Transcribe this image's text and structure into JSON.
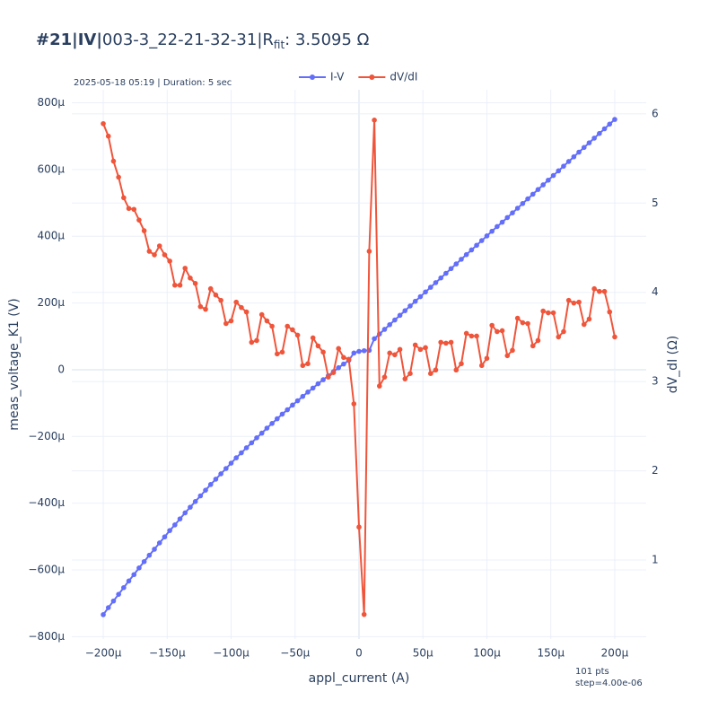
{
  "chart_data": {
    "type": "line",
    "title": {
      "bold": "#21|IV|",
      "text": "003-3_22-21-32-31|R",
      "subscript": "fit",
      "suffix": ": 3.5095 Ω"
    },
    "subtitle": "2025-05-18 05:19 | Duration: 5 sec",
    "annotations": [
      "101 pts",
      "step=4.00e-06"
    ],
    "x_label": "appl_current (A)",
    "y_label": "meas_voltage_K1 (V)",
    "y2_label": "dV_dI (Ω)",
    "legend": "top-center",
    "grid": true,
    "x": [
      -0.0002,
      -0.000196,
      -0.000192,
      -0.000188,
      -0.000184,
      -0.00018,
      -0.000176,
      -0.000172,
      -0.000168,
      -0.000164,
      -0.00016,
      -0.000156,
      -0.000152,
      -0.000148,
      -0.000144,
      -0.00014,
      -0.000136,
      -0.000132,
      -0.000128,
      -0.000124,
      -0.00012,
      -0.000116,
      -0.000112,
      -0.000108,
      -0.000104,
      -0.0001,
      -9.6e-05,
      -9.2e-05,
      -8.8e-05,
      -8.4e-05,
      -8e-05,
      -7.6e-05,
      -7.2e-05,
      -6.8e-05,
      -6.4e-05,
      -6e-05,
      -5.6e-05,
      -5.2e-05,
      -4.8e-05,
      -4.4e-05,
      -4e-05,
      -3.6e-05,
      -3.2e-05,
      -2.8e-05,
      -2.4e-05,
      -2e-05,
      -1.6e-05,
      -1.2e-05,
      -8e-06,
      -4e-06,
      0,
      4e-06,
      8e-06,
      1.2e-05,
      1.6e-05,
      2e-05,
      2.4e-05,
      2.8e-05,
      3.2e-05,
      3.6e-05,
      4e-05,
      4.4e-05,
      4.8e-05,
      5.2e-05,
      5.6e-05,
      6e-05,
      6.4e-05,
      6.8e-05,
      7.2e-05,
      7.6e-05,
      8e-05,
      8.4e-05,
      8.8e-05,
      9.2e-05,
      9.6e-05,
      0.0001,
      0.000104,
      0.000108,
      0.000112,
      0.000116,
      0.00012,
      0.000124,
      0.000128,
      0.000132,
      0.000136,
      0.00014,
      0.000144,
      0.000148,
      0.000152,
      0.000156,
      0.00016,
      0.000164,
      0.000168,
      0.000172,
      0.000176,
      0.00018,
      0.000184,
      0.000188,
      0.000192,
      0.000196,
      0.0002
    ],
    "series": [
      {
        "name": "I-V",
        "color": "#636efa",
        "axis": "y",
        "values": [
          -0.000734,
          -0.000713,
          -0.000693,
          -0.000673,
          -0.000653,
          -0.000633,
          -0.000614,
          -0.000594,
          -0.000575,
          -0.000556,
          -0.000538,
          -0.000519,
          -0.000501,
          -0.000482,
          -0.000465,
          -0.000447,
          -0.000429,
          -0.000412,
          -0.000395,
          -0.000378,
          -0.000361,
          -0.000344,
          -0.000328,
          -0.000312,
          -0.000296,
          -0.00028,
          -0.000264,
          -0.000249,
          -0.000234,
          -0.000219,
          -0.000204,
          -0.00019,
          -0.000175,
          -0.000161,
          -0.000147,
          -0.000133,
          -0.00012,
          -0.000106,
          -9.3e-05,
          -8e-05,
          -6.7e-05,
          -5.5e-05,
          -4.2e-05,
          -3e-05,
          -1.8e-05,
          -6e-06,
          6e-06,
          1.7e-05,
          2.8e-05,
          5e-05,
          5.5e-05,
          5.7e-05,
          5.8e-05,
          9.3e-05,
          0.000107,
          0.000121,
          0.000135,
          0.000149,
          0.000163,
          0.000177,
          0.000191,
          0.000205,
          0.000219,
          0.000233,
          0.000247,
          0.000261,
          0.000275,
          0.000289,
          0.000303,
          0.000317,
          0.000331,
          0.000345,
          0.000359,
          0.000373,
          0.000387,
          0.000401,
          0.000415,
          0.000429,
          0.000442,
          0.000456,
          0.00047,
          0.000484,
          0.000498,
          0.000512,
          0.000526,
          0.00054,
          0.000554,
          0.000568,
          0.000582,
          0.000596,
          0.00061,
          0.000624,
          0.000638,
          0.000652,
          0.000666,
          0.00068,
          0.000694,
          0.000708,
          0.000722,
          0.000736,
          0.00075
        ]
      },
      {
        "name": "dV/dI",
        "color": "#ef553b",
        "axis": "y2",
        "values": [
          5.89,
          5.75,
          5.47,
          5.29,
          5.06,
          4.94,
          4.93,
          4.81,
          4.69,
          4.46,
          4.42,
          4.52,
          4.42,
          4.35,
          4.08,
          4.08,
          4.27,
          4.16,
          4.1,
          3.84,
          3.81,
          4.04,
          3.97,
          3.91,
          3.65,
          3.68,
          3.89,
          3.83,
          3.78,
          3.44,
          3.46,
          3.75,
          3.68,
          3.62,
          3.31,
          3.33,
          3.62,
          3.58,
          3.52,
          3.18,
          3.2,
          3.49,
          3.4,
          3.33,
          3.05,
          3.1,
          3.37,
          3.27,
          3.25,
          2.75,
          1.37,
          0.39,
          4.46,
          5.93,
          2.95,
          3.05,
          3.32,
          3.3,
          3.36,
          3.03,
          3.09,
          3.41,
          3.36,
          3.38,
          3.09,
          3.13,
          3.44,
          3.43,
          3.44,
          3.13,
          3.2,
          3.54,
          3.51,
          3.51,
          3.18,
          3.26,
          3.63,
          3.56,
          3.57,
          3.29,
          3.35,
          3.71,
          3.66,
          3.65,
          3.4,
          3.46,
          3.79,
          3.77,
          3.77,
          3.5,
          3.56,
          3.91,
          3.88,
          3.89,
          3.64,
          3.7,
          4.04,
          4.01,
          4.01,
          3.78,
          3.5
        ]
      }
    ],
    "xlim": [
      -0.0002246,
      0.0002246
    ],
    "xticks": [
      {
        "value": -0.0002,
        "label": "−200µ"
      },
      {
        "value": -0.00015,
        "label": "−150µ"
      },
      {
        "value": -0.0001,
        "label": "−100µ"
      },
      {
        "value": -5e-05,
        "label": "−50µ"
      },
      0,
      {
        "value": 5e-05,
        "label": "50µ"
      },
      {
        "value": 0.0001,
        "label": "100µ"
      },
      {
        "value": 0.00015,
        "label": "150µ"
      },
      {
        "value": 0.0002,
        "label": "200µ"
      }
    ],
    "ylim": [
      -0.000807,
      0.000839
    ],
    "yticks": [
      {
        "value": -0.0008,
        "label": "−800µ"
      },
      {
        "value": -0.0006,
        "label": "−600µ"
      },
      {
        "value": -0.0004,
        "label": "−400µ"
      },
      {
        "value": -0.0002,
        "label": "−200µ"
      },
      0,
      {
        "value": 0.0002,
        "label": "200µ"
      },
      {
        "value": 0.0004,
        "label": "400µ"
      },
      {
        "value": 0.0006,
        "label": "600µ"
      },
      {
        "value": 0.0008,
        "label": "800µ"
      }
    ],
    "y2lim": [
      0.115,
      6.27
    ],
    "y2ticks": [
      1,
      2,
      3,
      4,
      5,
      6
    ]
  }
}
